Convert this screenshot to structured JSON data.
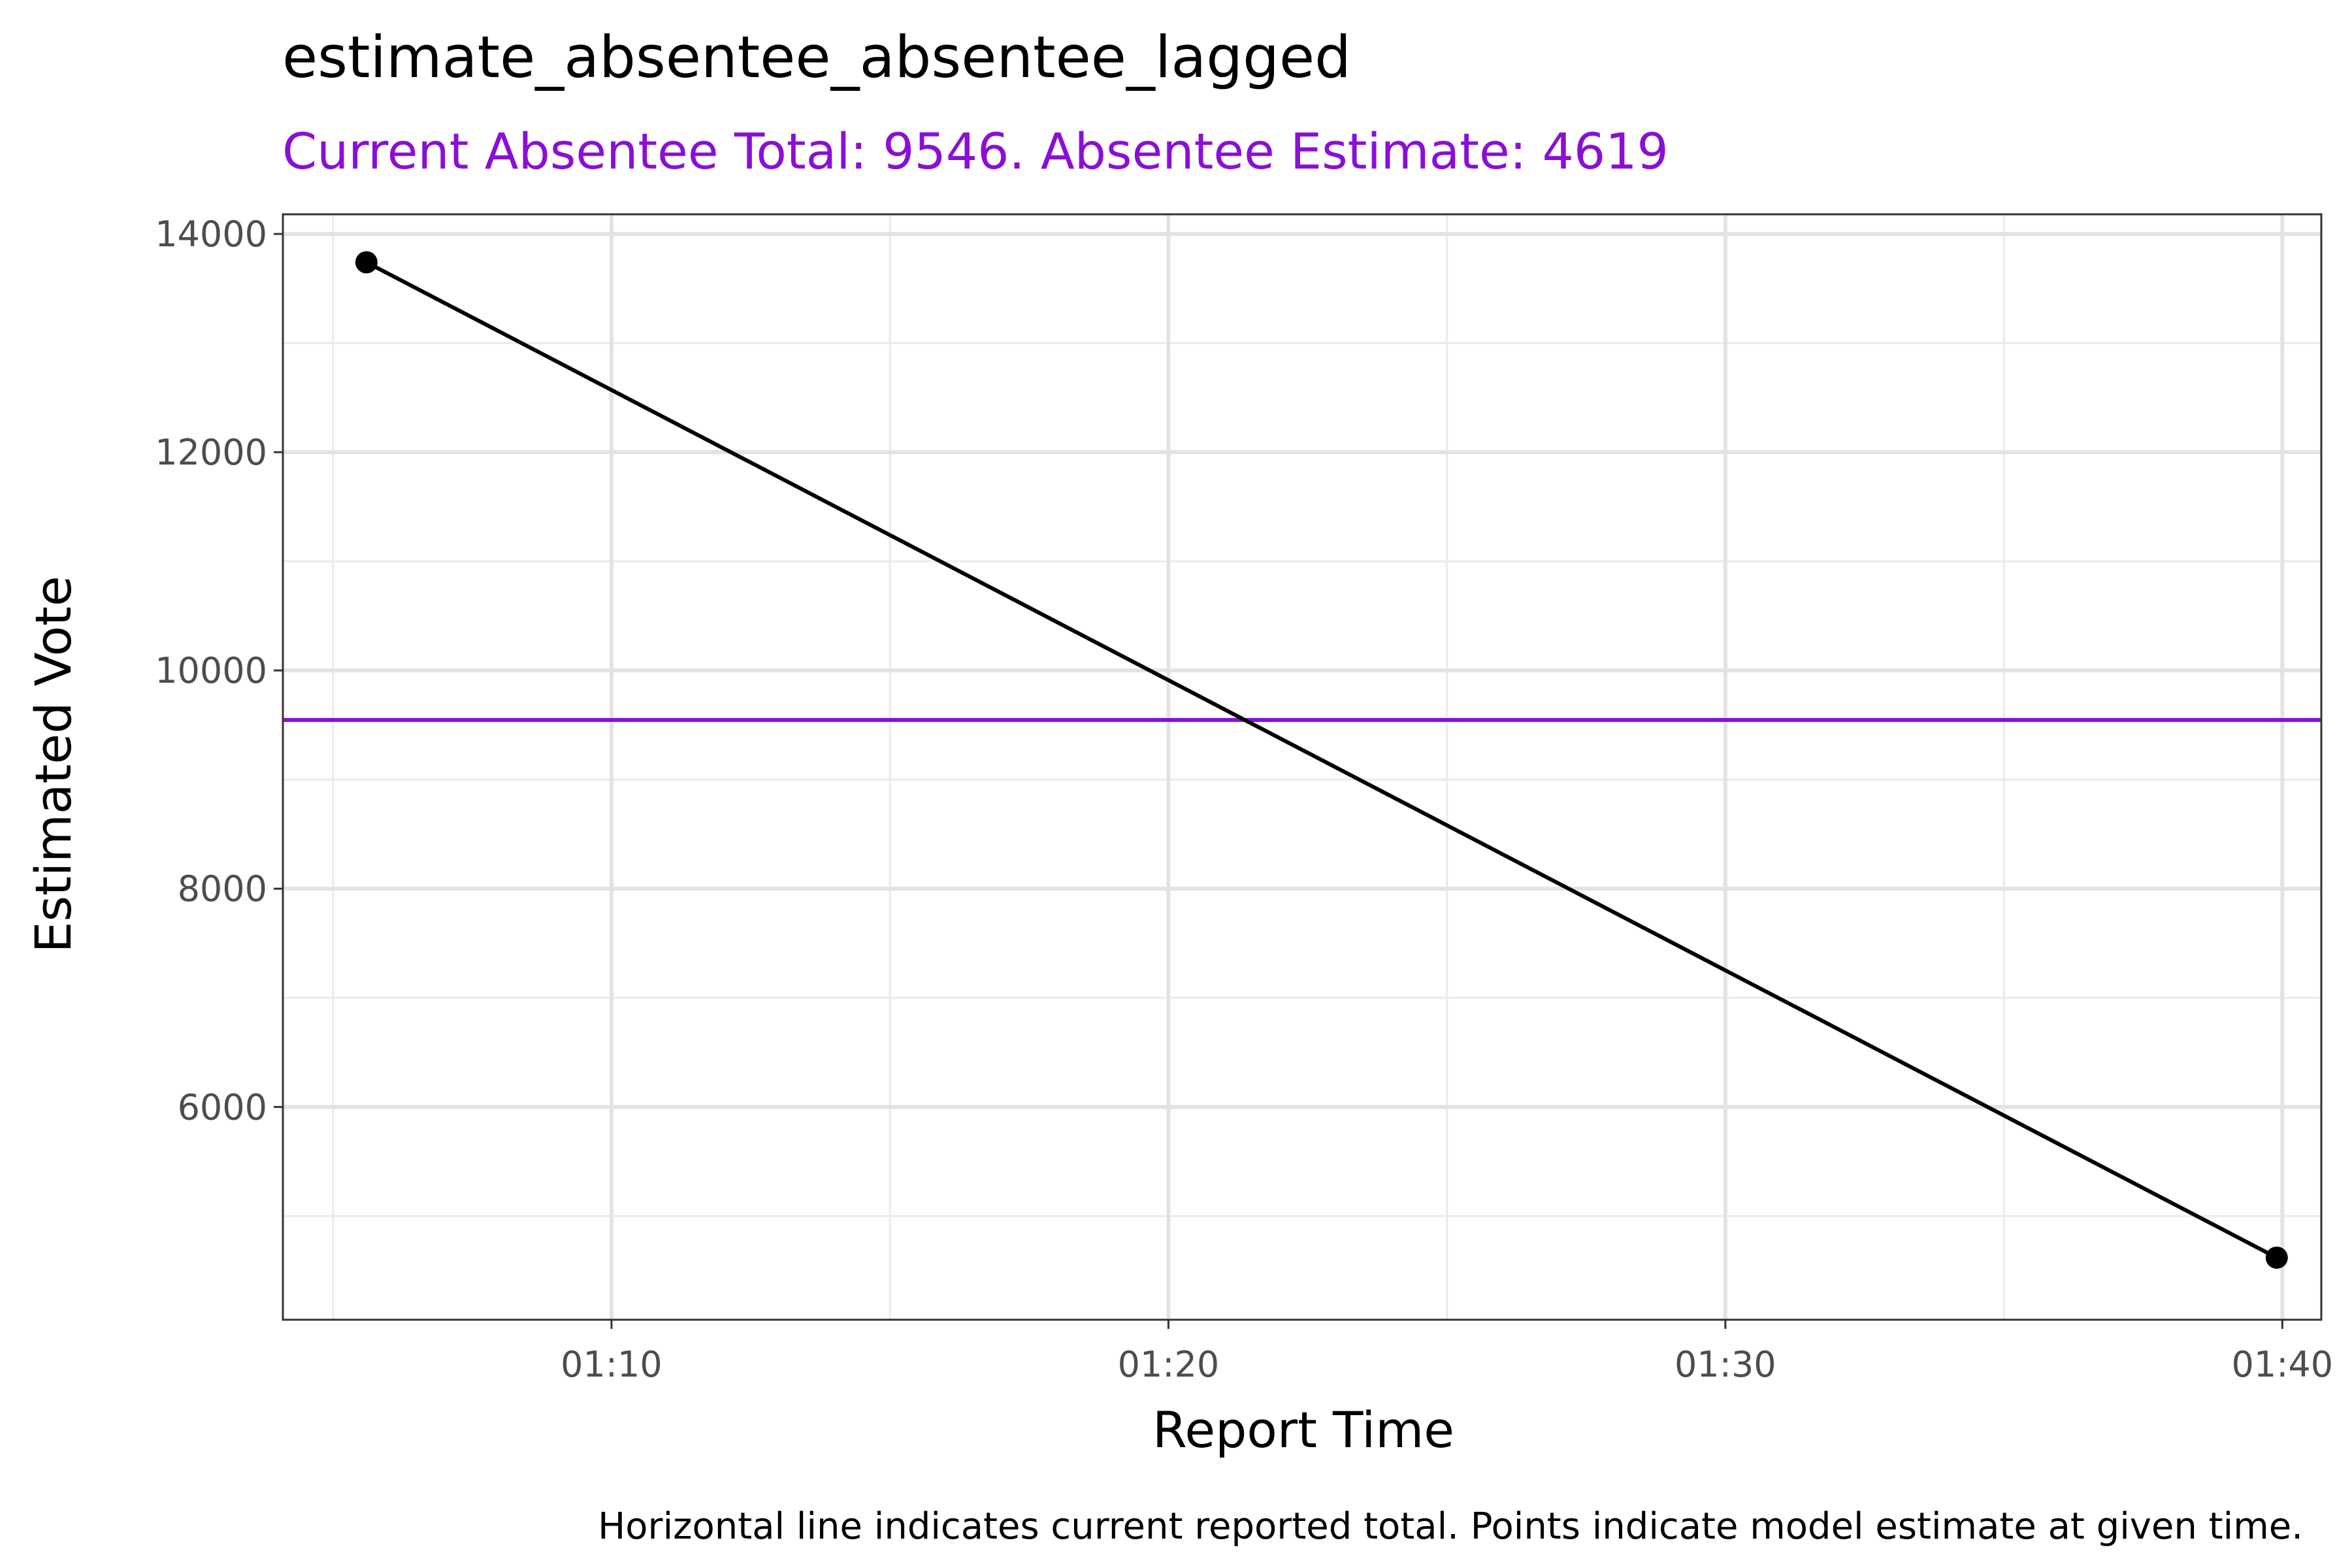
{
  "chart_data": {
    "type": "line",
    "title": "estimate_absentee_absentee_lagged",
    "subtitle": "Current Absentee Total: 9546. Absentee Estimate: 4619",
    "xlabel": "Report Time",
    "ylabel": "Estimated Vote",
    "caption": "Horizontal line indicates current reported total. Points indicate model estimate at given time.",
    "x_unit": "minutes after 01:00",
    "xlim": [
      64.1,
      100.7
    ],
    "ylim": [
      4050,
      14180
    ],
    "x_ticks": [
      {
        "value": 70,
        "label": "01:10"
      },
      {
        "value": 80,
        "label": "01:20"
      },
      {
        "value": 90,
        "label": "01:30"
      },
      {
        "value": 100,
        "label": "01:40"
      }
    ],
    "x_minor_ticks": [
      65,
      75,
      85,
      95
    ],
    "y_ticks": [
      {
        "value": 6000,
        "label": "6000"
      },
      {
        "value": 8000,
        "label": "8000"
      },
      {
        "value": 10000,
        "label": "10000"
      },
      {
        "value": 12000,
        "label": "12000"
      },
      {
        "value": 14000,
        "label": "14000"
      }
    ],
    "y_minor_ticks": [
      5000,
      7000,
      9000,
      11000,
      13000
    ],
    "grid": true,
    "series": [
      {
        "points": [
          {
            "x": 65.6,
            "y": 13740
          },
          {
            "x": 99.9,
            "y": 4619
          }
        ],
        "color": "#000000"
      }
    ],
    "reference_line": {
      "y": 9546,
      "color": "#8A0FD6"
    }
  }
}
